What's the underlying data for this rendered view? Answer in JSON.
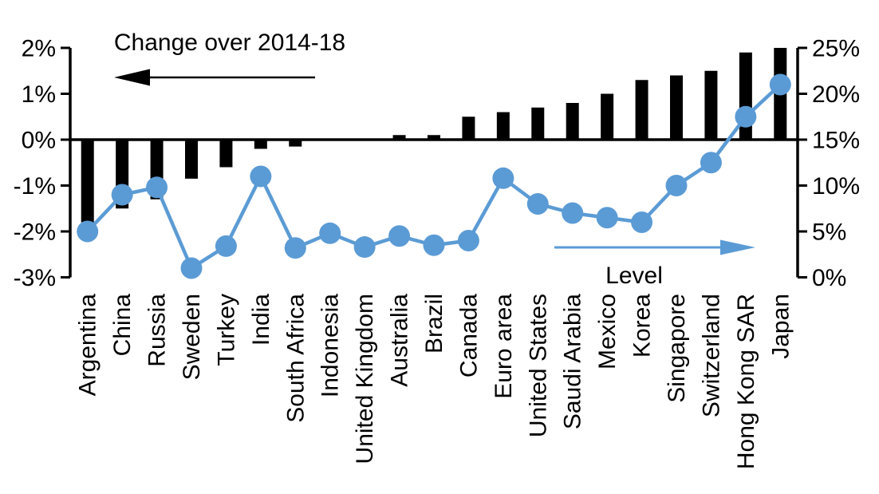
{
  "chart_data": {
    "type": "combo_bar_line",
    "title": "",
    "categories": [
      "Argentina",
      "China",
      "Russia",
      "Sweden",
      "Turkey",
      "India",
      "South Africa",
      "Indonesia",
      "United Kingdom",
      "Australia",
      "Brazil",
      "Canada",
      "Euro area",
      "United States",
      "Saudi Arabia",
      "Mexico",
      "Korea",
      "Singapore",
      "Switzerland",
      "Hong Kong SAR",
      "Japan"
    ],
    "series": [
      {
        "name": "Change over 2014-18",
        "type": "bar",
        "axis": "left",
        "unit": "%",
        "color": "#000000",
        "values": [
          -1.8,
          -1.5,
          -1.3,
          -0.85,
          -0.6,
          -0.2,
          -0.15,
          0,
          0,
          0.1,
          0.1,
          0.5,
          0.6,
          0.7,
          0.8,
          1.0,
          1.3,
          1.4,
          1.5,
          1.9,
          2.0
        ]
      },
      {
        "name": "Level",
        "type": "line",
        "axis": "right",
        "unit": "%",
        "color": "#5B9BD5",
        "values": [
          5,
          9,
          9.8,
          1,
          3.4,
          11,
          3.2,
          4.8,
          3.3,
          4.5,
          3.5,
          4,
          10.8,
          8,
          7,
          6.5,
          6,
          10,
          12.5,
          17.5,
          21
        ]
      }
    ],
    "left_axis": {
      "min": -3,
      "max": 2,
      "tick_values": [
        2,
        1,
        0,
        -1,
        -2,
        -3
      ],
      "tick_labels": [
        "2%",
        "1%",
        "0%",
        "-1%",
        "-2%",
        "-3%"
      ]
    },
    "right_axis": {
      "min": 0,
      "max": 25,
      "tick_values": [
        25,
        20,
        15,
        10,
        5,
        0
      ],
      "tick_labels": [
        "25%",
        "20%",
        "15%",
        "10%",
        "5%",
        "0%"
      ]
    },
    "annotations": {
      "bar_arrow_direction": "left",
      "line_arrow_direction": "right"
    },
    "grid": false,
    "legend_position": "in-plot-arrows"
  },
  "colors": {
    "background": "#FFFFFF",
    "bar": "#000000",
    "line": "#5B9BD5",
    "axis": "#000000",
    "text": "#000000"
  }
}
